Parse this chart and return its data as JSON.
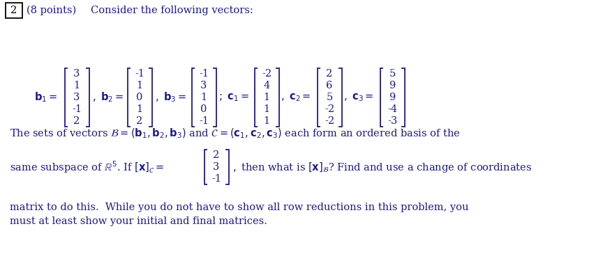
{
  "problem_number": "2",
  "points": "(8 points)",
  "intro": "Consider the following vectors:",
  "b1": [
    "3",
    "1",
    "3",
    "-1",
    "2"
  ],
  "b2": [
    "-1",
    "1",
    "0",
    "1",
    "2"
  ],
  "b3": [
    "-1",
    "3",
    "1",
    "0",
    "-1"
  ],
  "c1": [
    "-2",
    "4",
    "1",
    "1",
    "1"
  ],
  "c2": [
    "2",
    "6",
    "5",
    "-2",
    "-2"
  ],
  "c3": [
    "5",
    "9",
    "9",
    "-4",
    "-3"
  ],
  "x_c": [
    "2",
    "3",
    "-1"
  ],
  "bg_color": "#ffffff",
  "text_color": "#1a1a8c",
  "font_size": 10.5,
  "matrix_font_size": 10.5,
  "fig_width": 8.74,
  "fig_height": 3.65,
  "dpi": 100
}
